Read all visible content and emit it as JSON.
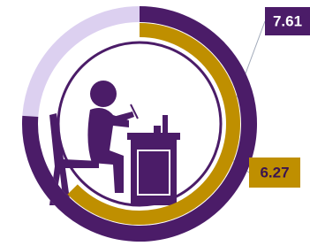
{
  "chart_data": {
    "type": "radial",
    "values": [
      7.61,
      6.27
    ],
    "colors": [
      "#4b1c68",
      "#bf8f00"
    ],
    "track_color": "#dcd0f0",
    "ylim": [
      0,
      10
    ]
  }
}
